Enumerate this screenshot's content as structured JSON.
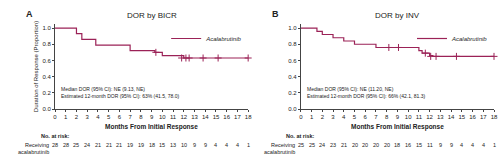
{
  "chart_data": [
    {
      "type": "line",
      "title": "DOR by BICR",
      "panel_label": "A",
      "ylabel": "Duration of Response (Proportion)",
      "xlabel": "Months From Initial Response",
      "series": [
        {
          "name": "Acalabrutinib",
          "type": "step",
          "color": "#9B2257",
          "x": [
            0,
            1,
            2,
            2.5,
            3,
            3.8,
            6,
            7,
            9,
            9.3,
            10,
            11,
            12,
            13,
            14,
            15,
            17,
            18
          ],
          "values": [
            1.0,
            1.0,
            0.93,
            0.86,
            0.86,
            0.79,
            0.79,
            0.72,
            0.72,
            0.7,
            0.66,
            0.66,
            0.63,
            0.63,
            0.63,
            0.63,
            0.63,
            0.63
          ]
        },
        {
          "type": "scatter",
          "marker": "+",
          "color": "#9B2257",
          "x": [
            9.4,
            11.8,
            12.2,
            12.5,
            13.8,
            15.2,
            18.0
          ],
          "values": [
            0.7,
            0.63,
            0.63,
            0.63,
            0.63,
            0.63,
            0.63
          ]
        }
      ],
      "annotations": [
        "Median DOR (95% CI): NE (9.13, NE)",
        "Estimated 12-month DOR (95% CI): 63% (41.5, 78.0)"
      ],
      "at_risk": {
        "title": "No. at risk:",
        "label": "Receiving\nacalabrutinib",
        "values": [
          28,
          28,
          25,
          24,
          21,
          21,
          21,
          19,
          19,
          18,
          15,
          13,
          10,
          9,
          9,
          4,
          4,
          4,
          1
        ]
      },
      "xlim": [
        0,
        18
      ],
      "ylim": [
        0.0,
        1.05
      ],
      "xticks": [
        0,
        1,
        2,
        3,
        4,
        5,
        6,
        7,
        8,
        9,
        10,
        11,
        12,
        13,
        14,
        15,
        16,
        17,
        18
      ],
      "yticks": [
        {
          "value": 0,
          "label": "0.0"
        },
        0.2,
        0.4,
        0.6,
        0.8,
        {
          "value": 1,
          "label": "1.0"
        }
      ],
      "grid": false,
      "legend": "upper right"
    },
    {
      "type": "line",
      "title": "DOR by INV",
      "panel_label": "B",
      "xlabel": "Months From Initial Response",
      "series": [
        {
          "name": "Acalabrutinib",
          "type": "step",
          "color": "#9B2257",
          "x": [
            0,
            1,
            1.5,
            2,
            3,
            4,
            5,
            6,
            7,
            8,
            9,
            10,
            11,
            11.3,
            12,
            12.3,
            13,
            14,
            15,
            17,
            18
          ],
          "values": [
            1.0,
            1.0,
            0.96,
            0.92,
            0.88,
            0.84,
            0.8,
            0.8,
            0.76,
            0.76,
            0.76,
            0.76,
            0.72,
            0.69,
            0.66,
            0.65,
            0.65,
            0.65,
            0.65,
            0.65,
            0.65
          ]
        },
        {
          "type": "scatter",
          "marker": "+",
          "color": "#9B2257",
          "x": [
            8.2,
            9.1,
            11.6,
            12.1,
            12.6,
            14.5,
            18.0
          ],
          "values": [
            0.76,
            0.76,
            0.69,
            0.65,
            0.65,
            0.65,
            0.65
          ]
        }
      ],
      "annotations": [
        "Median DOR (95% CI): NE (11.20, NE)",
        "Estimated 12-month DOR (95% CI): 66% (42.1, 81.3)"
      ],
      "at_risk": {
        "title": "No. at risk:",
        "label": "Receiving\nacalabrutinib",
        "values": [
          25,
          25,
          24,
          23,
          21,
          20,
          20,
          20,
          20,
          18,
          16,
          15,
          11,
          9,
          9,
          4,
          4,
          4,
          1
        ]
      },
      "xlim": [
        0,
        18
      ],
      "ylim": [
        0.0,
        1.05
      ],
      "xticks": [
        0,
        1,
        2,
        3,
        4,
        5,
        6,
        7,
        8,
        9,
        10,
        11,
        12,
        13,
        14,
        15,
        16,
        17,
        18
      ],
      "yticks": [
        {
          "value": 0,
          "label": "0.0"
        },
        0.2,
        0.4,
        0.6,
        0.8,
        {
          "value": 1,
          "label": "1.0"
        }
      ],
      "grid": false,
      "legend": "upper right"
    }
  ]
}
